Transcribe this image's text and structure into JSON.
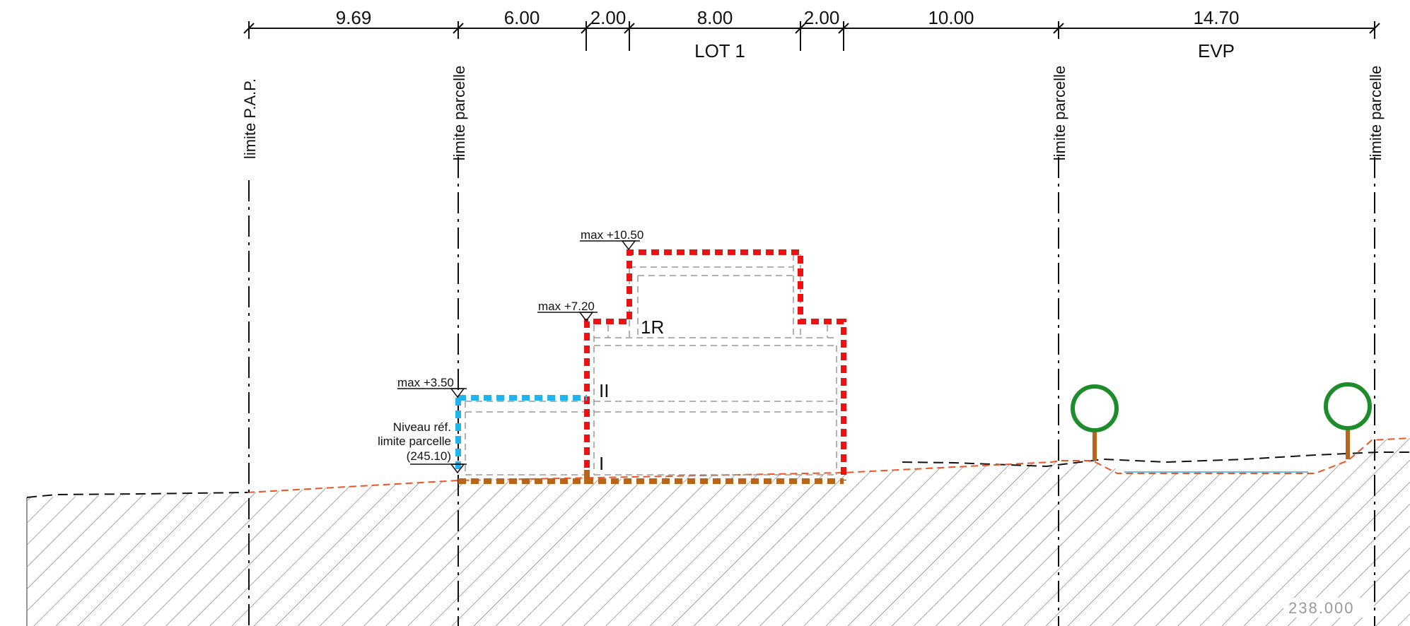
{
  "dimensions": [
    {
      "value": "9.69"
    },
    {
      "value": "6.00"
    },
    {
      "value": "2.00"
    },
    {
      "value": "8.00"
    },
    {
      "value": "2.00"
    },
    {
      "value": "10.00"
    },
    {
      "value": "14.70"
    }
  ],
  "zones": {
    "lot": "LOT 1",
    "evp": "EVP"
  },
  "limits": {
    "pap": "limite P.A.P.",
    "parcel_1": "limite parcelle",
    "parcel_2": "limite parcelle",
    "parcel_3": "limite parcelle"
  },
  "levels": {
    "max_top": "max +10.50",
    "max_mid": "max +7.20",
    "max_low": "max +3.50"
  },
  "reference": {
    "line1": "Niveau réf.",
    "line2": "limite parcelle",
    "line3": "(245.10)"
  },
  "floors": {
    "ground": "I",
    "second": "II",
    "attic": "1R"
  },
  "elevation": "238.000",
  "colors": {
    "building_outline": "#ee1111",
    "annex_outline": "#1fb4ee",
    "foundation": "#b8651a",
    "terrain_line": "#ee5522",
    "tree_crown": "#1e8c2a",
    "tree_trunk": "#b8651a",
    "hatch": "#777777"
  },
  "icons": [
    "tree-icon",
    "level-marker-icon"
  ]
}
